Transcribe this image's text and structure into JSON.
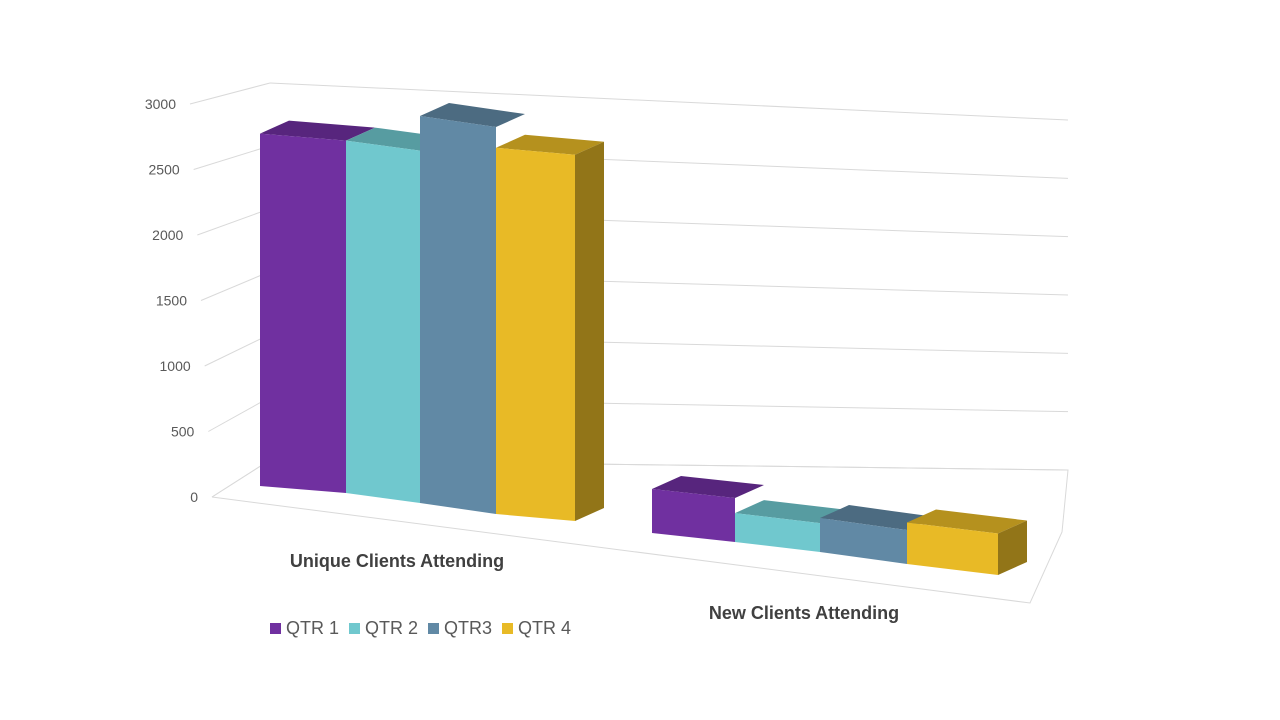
{
  "chart_data": {
    "type": "bar",
    "subtype": "3d-clustered-column",
    "title": "",
    "xlabel": "",
    "ylabel": "",
    "categories": [
      "Unique Clients Attending",
      "New Clients Attending"
    ],
    "yticks": [
      "0",
      "500",
      "1000",
      "1500",
      "2000",
      "2500",
      "3000"
    ],
    "ylim": [
      0,
      3000
    ],
    "grid": true,
    "legend_position": "bottom-left",
    "series": [
      {
        "name": "QTR 1",
        "color": "#7030A0",
        "values": [
          2550,
          350
        ]
      },
      {
        "name": "QTR 2",
        "color": "#70C8CE",
        "values": [
          2550,
          230
        ]
      },
      {
        "name": "QTR3",
        "color": "#6189A5",
        "values": [
          2800,
          270
        ]
      },
      {
        "name": "QTR 4",
        "color": "#E8BA26",
        "values": [
          2650,
          330
        ]
      }
    ]
  }
}
